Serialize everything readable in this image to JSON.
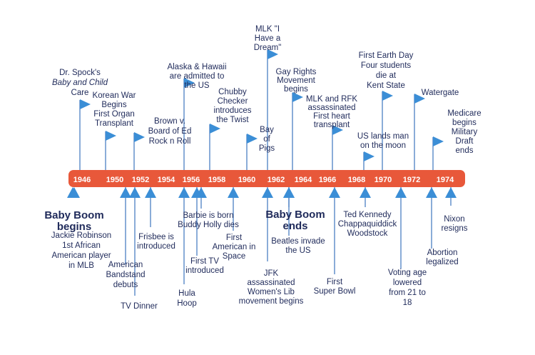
{
  "colors": {
    "bar": "#e8583a",
    "marker": "#3b8ed6",
    "stem": "#4a7fc4",
    "text": "#1f2a5a",
    "year_text": "#ffffff"
  },
  "years": [
    "1946",
    "1950",
    "1952",
    "1954",
    "1956",
    "1958",
    "1960",
    "1962",
    "1964",
    "1966",
    "1968",
    "1970",
    "1972",
    "1974"
  ],
  "events_above": [
    {
      "id": "dr-spock",
      "lines": [
        "Dr. Spock's",
        "Baby and Child",
        "Care"
      ],
      "italic_lines": [
        1
      ]
    },
    {
      "id": "korean-war",
      "lines": [
        "Korean War",
        "Begins",
        "First Organ",
        "Transplant"
      ]
    },
    {
      "id": "brown-v-board",
      "lines": [
        "Brown v.",
        "Board of Ed",
        "Rock n Roll"
      ]
    },
    {
      "id": "alaska-hawaii",
      "lines": [
        "Alaska & Hawaii",
        "are admitted to",
        "the US"
      ]
    },
    {
      "id": "chubby-checker",
      "lines": [
        "Chubby",
        "Checker",
        "introduces",
        "the Twist"
      ]
    },
    {
      "id": "bay-of-pigs",
      "lines": [
        "Bay",
        "of",
        "Pigs"
      ]
    },
    {
      "id": "mlk-dream",
      "lines": [
        "MLK \"I",
        "Have a",
        "Dream\""
      ]
    },
    {
      "id": "gay-rights",
      "lines": [
        "Gay Rights",
        "Movement",
        "begins"
      ]
    },
    {
      "id": "mlk-rfk",
      "lines": [
        "MLK and RFK",
        "assassinated",
        "First heart",
        "transplant"
      ]
    },
    {
      "id": "moon-landing",
      "lines": [
        "US lands man",
        "on the moon"
      ]
    },
    {
      "id": "earth-day",
      "lines": [
        "First Earth Day",
        "Four students",
        "die at",
        "Kent State"
      ]
    },
    {
      "id": "watergate",
      "lines": [
        "Watergate"
      ]
    },
    {
      "id": "medicare",
      "lines": [
        "Medicare",
        "begins",
        "Military",
        "Draft",
        "ends"
      ]
    }
  ],
  "events_below": [
    {
      "id": "baby-boom-begins",
      "lines": [
        "Baby Boom",
        "begins"
      ],
      "emphasis": true
    },
    {
      "id": "jackie-robinson",
      "lines": [
        "Jackie Robinson",
        "1st African",
        "American player",
        "in MLB"
      ]
    },
    {
      "id": "american-bandstand",
      "lines": [
        "American",
        "Bandstand",
        "debuts"
      ]
    },
    {
      "id": "tv-dinner",
      "lines": [
        "TV Dinner"
      ]
    },
    {
      "id": "frisbee",
      "lines": [
        "Frisbee is",
        "introduced"
      ]
    },
    {
      "id": "hula-hoop",
      "lines": [
        "Hula",
        "Hoop"
      ]
    },
    {
      "id": "barbie",
      "lines": [
        "Barbie is born",
        "Buddy Holly dies"
      ]
    },
    {
      "id": "first-tv",
      "lines": [
        "First TV",
        "introduced"
      ]
    },
    {
      "id": "american-in-space",
      "lines": [
        "First",
        "American in",
        "Space"
      ]
    },
    {
      "id": "jfk",
      "lines": [
        "JFK",
        "assassinated",
        "Women's Lib",
        "movement begins"
      ]
    },
    {
      "id": "baby-boom-ends",
      "lines": [
        "Baby Boom",
        "ends"
      ],
      "emphasis": true
    },
    {
      "id": "beatles",
      "lines": [
        "Beatles invade",
        "the US"
      ]
    },
    {
      "id": "super-bowl",
      "lines": [
        "First",
        "Super Bowl"
      ]
    },
    {
      "id": "woodstock",
      "lines": [
        "Ted Kennedy",
        "Chappaquiddick",
        "Woodstock"
      ]
    },
    {
      "id": "voting-age",
      "lines": [
        "Voting age",
        "lowered",
        "from 21 to",
        "18"
      ]
    },
    {
      "id": "abortion",
      "lines": [
        "Abortion",
        "legalized"
      ]
    },
    {
      "id": "nixon",
      "lines": [
        "Nixon",
        "resigns"
      ]
    }
  ]
}
